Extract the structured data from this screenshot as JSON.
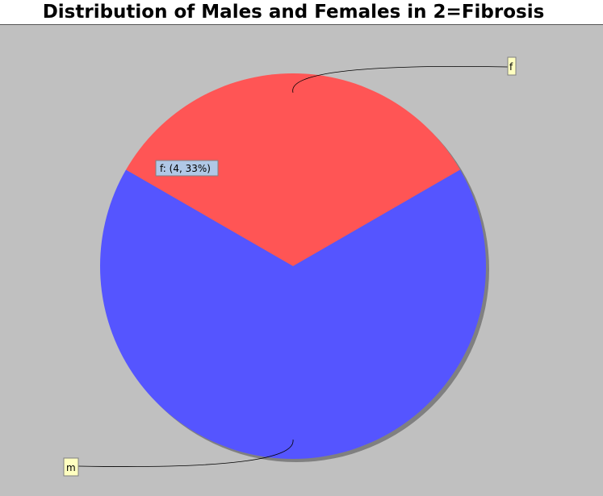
{
  "chart_data": {
    "type": "pie",
    "title": "Distribution of Males and Females in 2=Fibrosis",
    "slices": [
      {
        "label": "f",
        "value": 4,
        "percent": 33,
        "color": "#ff5555"
      },
      {
        "label": "m",
        "value": 8,
        "percent": 67,
        "color": "#5555ff"
      }
    ],
    "tooltip": "f: (4, 33%)",
    "background": "#c0c0c0",
    "legend": "none"
  }
}
